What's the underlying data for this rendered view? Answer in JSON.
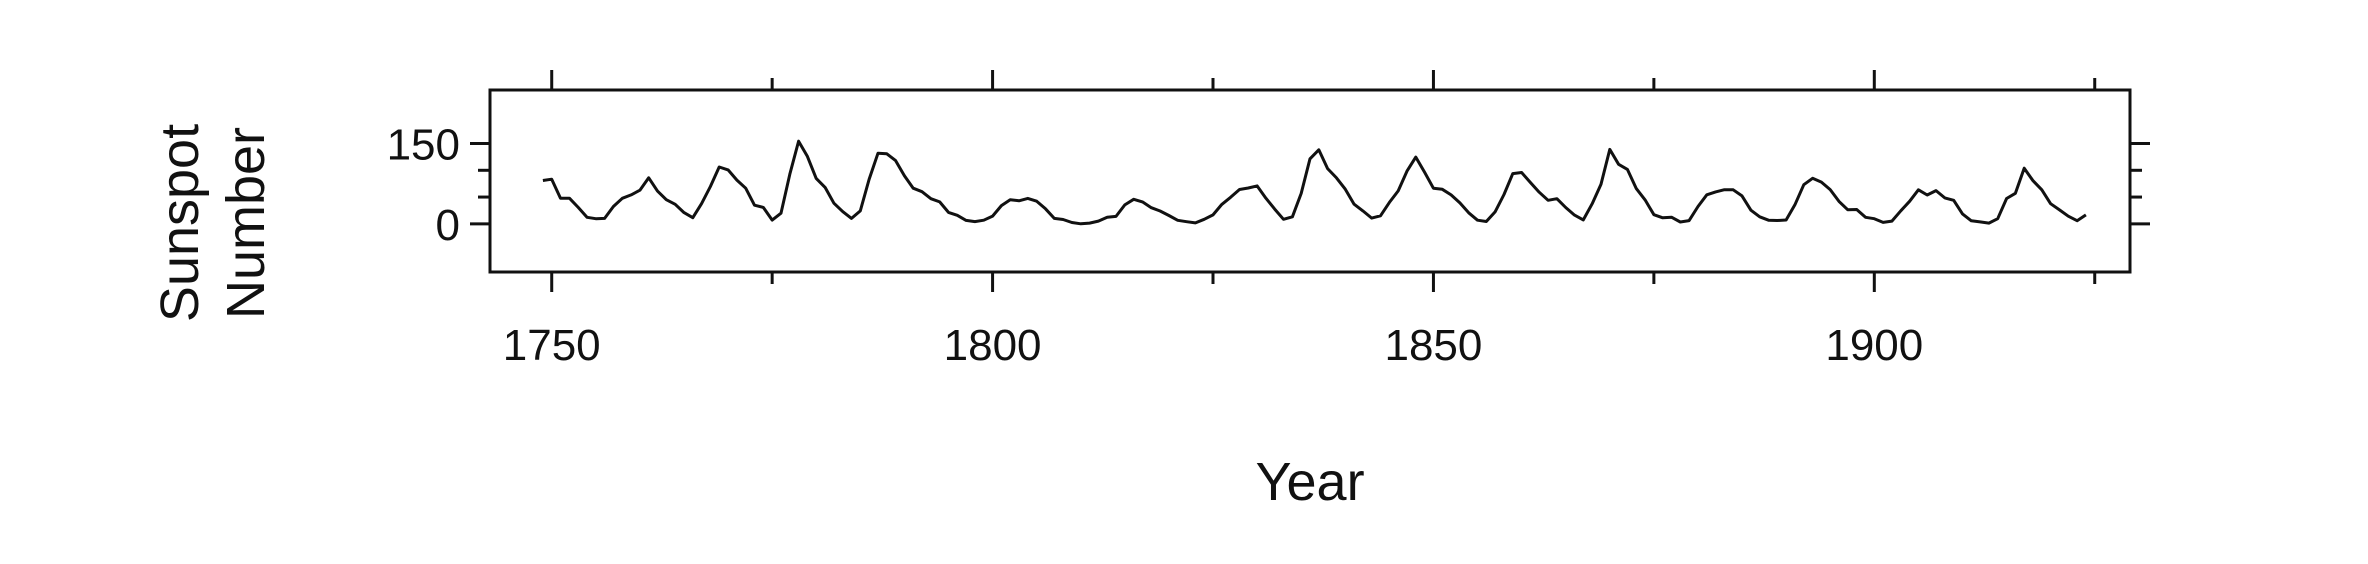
{
  "chart_data": {
    "type": "line",
    "title": "",
    "xlabel": "Year",
    "ylabel": [
      "Sunspot",
      "Number"
    ],
    "xlim": [
      1743,
      1929
    ],
    "ylim": [
      -90,
      250
    ],
    "x_ticks": [
      1750,
      1800,
      1850,
      1900
    ],
    "y_ticks": [
      0,
      150
    ],
    "grid": false,
    "series": [
      {
        "x": [
          1749,
          1750,
          1751,
          1752,
          1753,
          1754,
          1755,
          1756,
          1757,
          1758,
          1759,
          1760,
          1761,
          1762,
          1763,
          1764,
          1765,
          1766,
          1767,
          1768,
          1769,
          1770,
          1771,
          1772,
          1773,
          1774,
          1775,
          1776,
          1777,
          1778,
          1779,
          1780,
          1781,
          1782,
          1783,
          1784,
          1785,
          1786,
          1787,
          1788,
          1789,
          1790,
          1791,
          1792,
          1793,
          1794,
          1795,
          1796,
          1797,
          1798,
          1799,
          1800,
          1801,
          1802,
          1803,
          1804,
          1805,
          1806,
          1807,
          1808,
          1809,
          1810,
          1811,
          1812,
          1813,
          1814,
          1815,
          1816,
          1817,
          1818,
          1819,
          1820,
          1821,
          1822,
          1823,
          1824,
          1825,
          1826,
          1827,
          1828,
          1829,
          1830,
          1831,
          1832,
          1833,
          1834,
          1835,
          1836,
          1837,
          1838,
          1839,
          1840,
          1841,
          1842,
          1843,
          1844,
          1845,
          1846,
          1847,
          1848,
          1849,
          1850,
          1851,
          1852,
          1853,
          1854,
          1855,
          1856,
          1857,
          1858,
          1859,
          1860,
          1861,
          1862,
          1863,
          1864,
          1865,
          1866,
          1867,
          1868,
          1869,
          1870,
          1871,
          1872,
          1873,
          1874,
          1875,
          1876,
          1877,
          1878,
          1879,
          1880,
          1881,
          1882,
          1883,
          1884,
          1885,
          1886,
          1887,
          1888,
          1889,
          1890,
          1891,
          1892,
          1893,
          1894,
          1895,
          1896,
          1897,
          1898,
          1899,
          1900,
          1901,
          1902,
          1903,
          1904,
          1905,
          1906,
          1907,
          1908,
          1909,
          1910,
          1911,
          1912,
          1913,
          1914,
          1915,
          1916,
          1917,
          1918,
          1919,
          1920,
          1921,
          1922,
          1923,
          1924
        ],
        "y": [
          80.9,
          83.4,
          47.7,
          47.8,
          30.7,
          12.2,
          9.6,
          10.2,
          32.4,
          47.6,
          54.0,
          62.9,
          85.9,
          61.2,
          45.1,
          36.4,
          20.9,
          11.4,
          37.8,
          69.8,
          106.1,
          100.8,
          81.6,
          66.5,
          34.8,
          30.6,
          7.0,
          19.8,
          92.5,
          154.4,
          125.9,
          84.8,
          68.1,
          38.5,
          22.8,
          10.2,
          24.1,
          82.9,
          132.0,
          130.9,
          118.1,
          89.9,
          66.6,
          60.0,
          46.9,
          41.0,
          21.3,
          16.0,
          6.4,
          4.1,
          6.8,
          14.5,
          34.0,
          45.0,
          43.1,
          47.5,
          42.2,
          28.1,
          10.1,
          8.1,
          2.5,
          0.0,
          1.4,
          5.0,
          12.2,
          13.9,
          35.4,
          45.8,
          41.0,
          30.1,
          23.9,
          15.6,
          6.6,
          4.0,
          1.8,
          8.5,
          16.6,
          36.3,
          49.6,
          64.2,
          67.0,
          70.9,
          47.8,
          27.5,
          8.5,
          13.2,
          56.9,
          121.5,
          138.3,
          103.2,
          85.7,
          64.6,
          36.7,
          24.2,
          10.7,
          15.0,
          40.1,
          61.5,
          98.5,
          124.7,
          96.3,
          66.6,
          64.5,
          54.1,
          39.0,
          20.6,
          6.7,
          4.3,
          22.7,
          54.8,
          93.8,
          95.8,
          77.2,
          59.1,
          44.0,
          47.0,
          30.5,
          16.3,
          7.3,
          37.6,
          74.0,
          139.0,
          111.2,
          101.6,
          66.2,
          44.7,
          17.0,
          11.3,
          12.4,
          3.4,
          6.0,
          32.3,
          54.3,
          59.7,
          63.7,
          63.5,
          52.2,
          25.4,
          13.1,
          6.8,
          6.3,
          7.1,
          35.6,
          73.0,
          85.1,
          78.0,
          64.0,
          41.8,
          26.2,
          26.7,
          12.1,
          9.5,
          2.7,
          5.0,
          24.4,
          42.0,
          63.5,
          53.8,
          62.0,
          48.5,
          43.9,
          18.6,
          5.7,
          3.6,
          1.4,
          9.6,
          47.4,
          57.1,
          103.9,
          80.6,
          63.6,
          37.6,
          26.1,
          14.2,
          5.8,
          16.7
        ]
      }
    ]
  }
}
